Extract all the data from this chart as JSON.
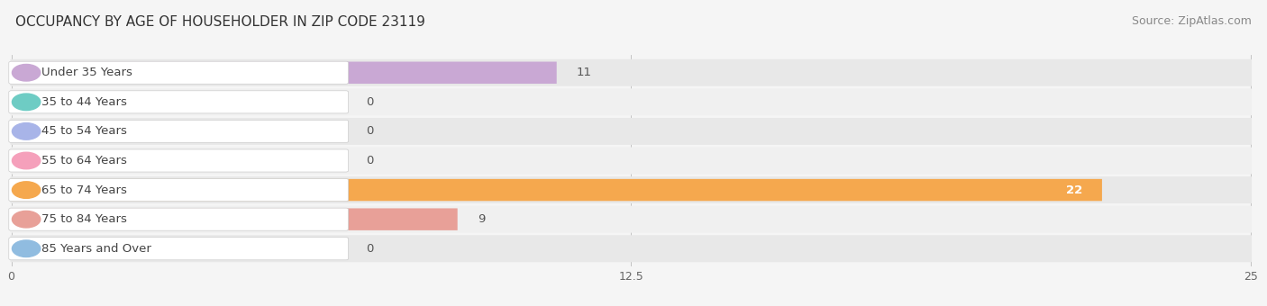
{
  "title": "OCCUPANCY BY AGE OF HOUSEHOLDER IN ZIP CODE 23119",
  "source": "Source: ZipAtlas.com",
  "categories": [
    "Under 35 Years",
    "35 to 44 Years",
    "45 to 54 Years",
    "55 to 64 Years",
    "65 to 74 Years",
    "75 to 84 Years",
    "85 Years and Over"
  ],
  "values": [
    11,
    0,
    0,
    0,
    22,
    9,
    0
  ],
  "bar_colors": [
    "#c9a8d4",
    "#6eccc4",
    "#a8b4e8",
    "#f5a0bb",
    "#f5a84e",
    "#e8a098",
    "#90bce0"
  ],
  "xlim_max": 25,
  "xticks": [
    0,
    12.5,
    25
  ],
  "bg_color": "#f5f5f5",
  "row_colors": [
    "#e8e8e8",
    "#f0f0f0"
  ],
  "title_fontsize": 11,
  "source_fontsize": 9,
  "tick_fontsize": 9,
  "label_fontsize": 9.5,
  "value_fontsize": 9.5
}
